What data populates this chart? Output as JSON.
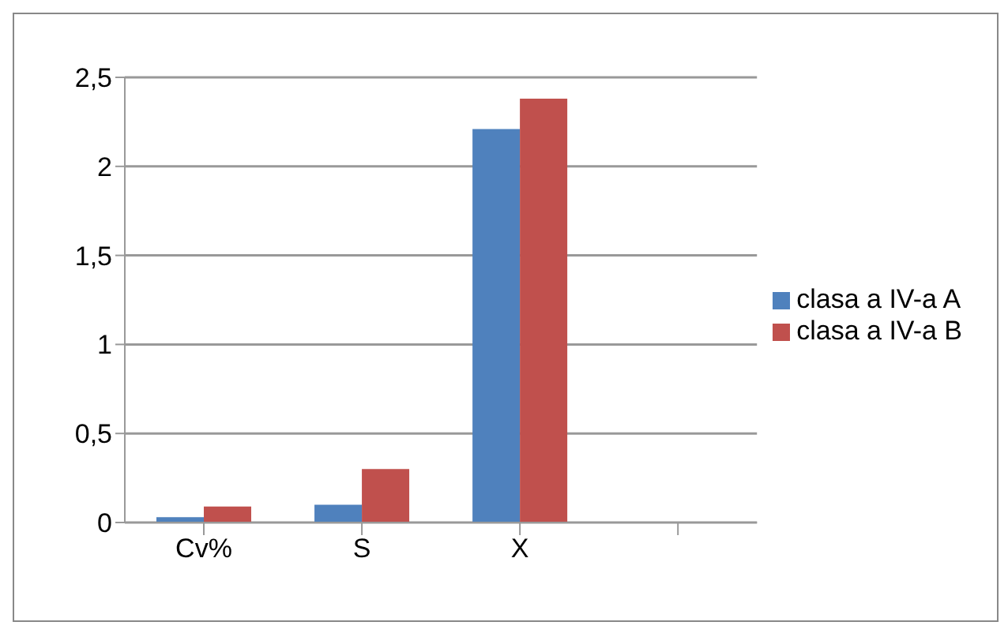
{
  "chart_data": {
    "type": "bar",
    "categories": [
      "Cv%",
      "S",
      "X",
      null
    ],
    "series": [
      {
        "name": "clasa a IV-a A",
        "color": "#4f81bd",
        "values": [
          0.03,
          0.1,
          2.21,
          null
        ]
      },
      {
        "name": "clasa a IV-a B",
        "color": "#c0504d",
        "values": [
          0.09,
          0.3,
          2.38,
          null
        ]
      }
    ],
    "ylim": [
      0,
      2.5
    ],
    "yticks": [
      0,
      {
        "value": 0.5,
        "label": "0,5"
      },
      1,
      {
        "value": 1.5,
        "label": "1,5"
      },
      2,
      {
        "value": 2.5,
        "label": "2,5"
      }
    ],
    "grid": "y",
    "legend": "right"
  }
}
